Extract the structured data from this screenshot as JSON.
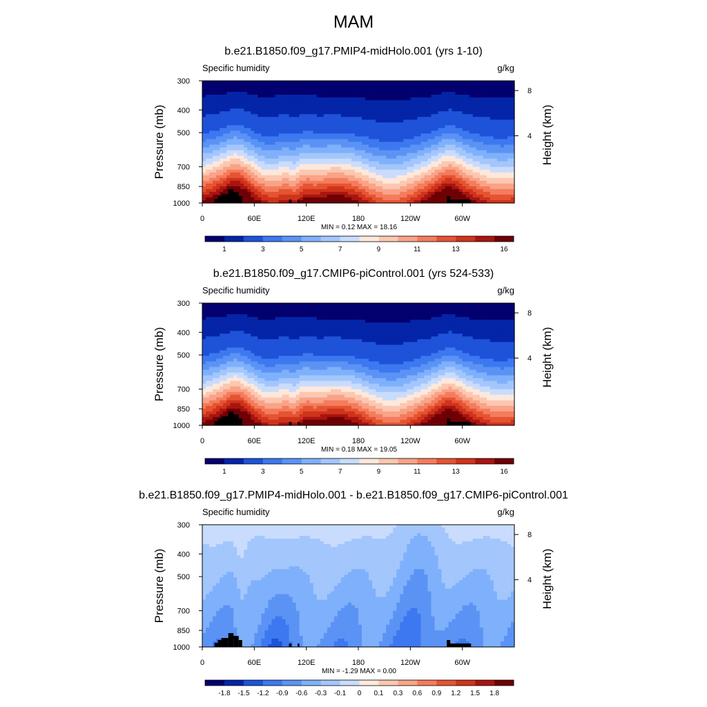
{
  "figure": {
    "title": "MAM"
  },
  "colors": {
    "blue_red_diverging": [
      "#03006f",
      "#0425a8",
      "#1e52d9",
      "#3d78f0",
      "#5b93f5",
      "#7fb0fb",
      "#a3c6fc",
      "#c9dcfd",
      "#fde8dc",
      "#fcc7b0",
      "#f9a388",
      "#f47c5d",
      "#e55432",
      "#d0331b",
      "#a81510",
      "#6e0005"
    ],
    "terrain": "#000000"
  },
  "chart_data": [
    {
      "type": "contour",
      "title": "b.e21.B1850.f09_g17.PMIP4-midHolo.001 (yrs 1-10)",
      "left_label": "Specific humidity",
      "right_label": "g/kg",
      "ylabel": "Pressure (mb)",
      "y2label": "Height (km)",
      "yticks": [
        300,
        400,
        500,
        700,
        850,
        1000
      ],
      "y2ticks": [
        8,
        4
      ],
      "ylim": [
        1000,
        300
      ],
      "xlim": [
        0,
        360
      ],
      "xticks": [
        "0",
        "60E",
        "120E",
        "180",
        "120W",
        "60W"
      ],
      "stats": "MIN =   0.12  MAX =  18.16",
      "colorbar_labels": [
        "1",
        "3",
        "5",
        "7",
        "9",
        "11",
        "13",
        "16"
      ],
      "field": "absolute"
    },
    {
      "type": "contour",
      "title": "b.e21.B1850.f09_g17.CMIP6-piControl.001 (yrs 524-533)",
      "left_label": "Specific humidity",
      "right_label": "g/kg",
      "ylabel": "Pressure (mb)",
      "y2label": "Height (km)",
      "yticks": [
        300,
        400,
        500,
        700,
        850,
        1000
      ],
      "y2ticks": [
        8,
        4
      ],
      "ylim": [
        1000,
        300
      ],
      "xlim": [
        0,
        360
      ],
      "xticks": [
        "0",
        "60E",
        "120E",
        "180",
        "120W",
        "60W"
      ],
      "stats": "MIN =   0.18  MAX =  19.05",
      "colorbar_labels": [
        "1",
        "3",
        "5",
        "7",
        "9",
        "11",
        "13",
        "16"
      ],
      "field": "absolute"
    },
    {
      "type": "contour",
      "title": "b.e21.B1850.f09_g17.PMIP4-midHolo.001 - b.e21.B1850.f09_g17.CMIP6-piControl.001",
      "left_label": "Specific humidity",
      "right_label": "g/kg",
      "ylabel": "Pressure (mb)",
      "y2label": "Height (km)",
      "yticks": [
        300,
        400,
        500,
        700,
        850,
        1000
      ],
      "y2ticks": [
        8,
        4
      ],
      "ylim": [
        1000,
        300
      ],
      "xlim": [
        0,
        360
      ],
      "xticks": [
        "0",
        "60E",
        "120E",
        "180",
        "120W",
        "60W"
      ],
      "stats": "MIN =  -1.29  MAX =   0.00",
      "colorbar_labels": [
        "-1.8",
        "-1.5",
        "-1.2",
        "-0.9",
        "-0.6",
        "-0.3",
        "-0.1",
        "0",
        "0.1",
        "0.3",
        "0.6",
        "0.9",
        "1.2",
        "1.5",
        "1.8"
      ],
      "field": "difference"
    }
  ]
}
